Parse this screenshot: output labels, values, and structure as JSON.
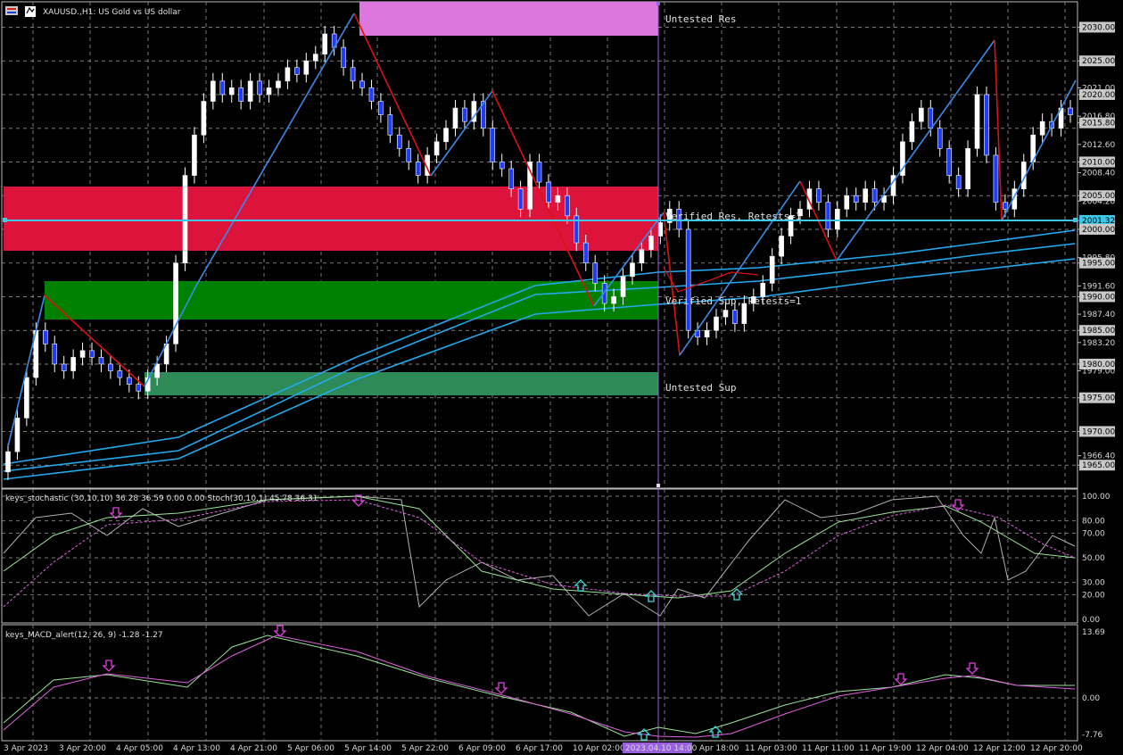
{
  "header": {
    "symbol_title": "XAUUSD.,H1: US Gold vs US dollar",
    "stoch_title": "keys_stochastic (30,10,10) 36.28 36.59 0.00 0.00 Stoch(30,10,1) 45.78 36.31",
    "macd_title": "keys_MACD_alert(12, 26, 9) -1.28 -1.27"
  },
  "zones": {
    "untested_res": "Untested Res",
    "verified_res": "Verified Res, Retests=1",
    "verified_sup": "Verified Sup, Retests=1",
    "untested_sup": "Untested Sup"
  },
  "price_axis": {
    "labels": [
      "2030.00",
      "2025.00",
      "2021.00",
      "2020.00",
      "2016.80",
      "2015.80",
      "2012.60",
      "2010.00",
      "2008.40",
      "2005.00",
      "2004.20",
      "2001.32",
      "2000.00",
      "1995.80",
      "1995.00",
      "1991.60",
      "1990.00",
      "1987.40",
      "1985.00",
      "1983.20",
      "1980.00",
      "1979.00",
      "1975.00",
      "1970.00",
      "1966.40",
      "1965.00"
    ],
    "current_price": "2001.32"
  },
  "stoch_axis": [
    "100.00",
    "80.00",
    "70.00",
    "50.00",
    "30.00",
    "20.00",
    "0.00"
  ],
  "macd_axis": [
    "13.69",
    "0.00",
    "-7.76"
  ],
  "time_axis": [
    "3 Apr 2023",
    "3 Apr 20:00",
    "4 Apr 05:00",
    "4 Apr 13:00",
    "4 Apr 21:00",
    "5 Apr 06:00",
    "5 Apr 14:00",
    "5 Apr 22:00",
    "6 Apr 09:00",
    "6 Apr 17:00",
    "10 Apr 02:00",
    "2023.04.10 14:00",
    "Apr 18:00",
    "11 Apr 03:00",
    "11 Apr 11:00",
    "11 Apr 19:00",
    "12 Apr 04:00",
    "12 Apr 12:00",
    "12 Apr 20:00"
  ],
  "colors": {
    "background": "#000000",
    "grid": "#7a7a7a",
    "bull_candle": "#ffffff",
    "bear_candle": "#1e3cff",
    "zigzag_up": "#3a8be8",
    "zigzag_down": "#e01010",
    "ma": "#22aaee",
    "untested_res": "#dd77dd",
    "verified_res": "#dc143c",
    "verified_sup": "#008000",
    "untested_sup": "#2e8b57",
    "current_line": "#3fc7e8",
    "vertical_marker": "#9a60e0"
  }
}
